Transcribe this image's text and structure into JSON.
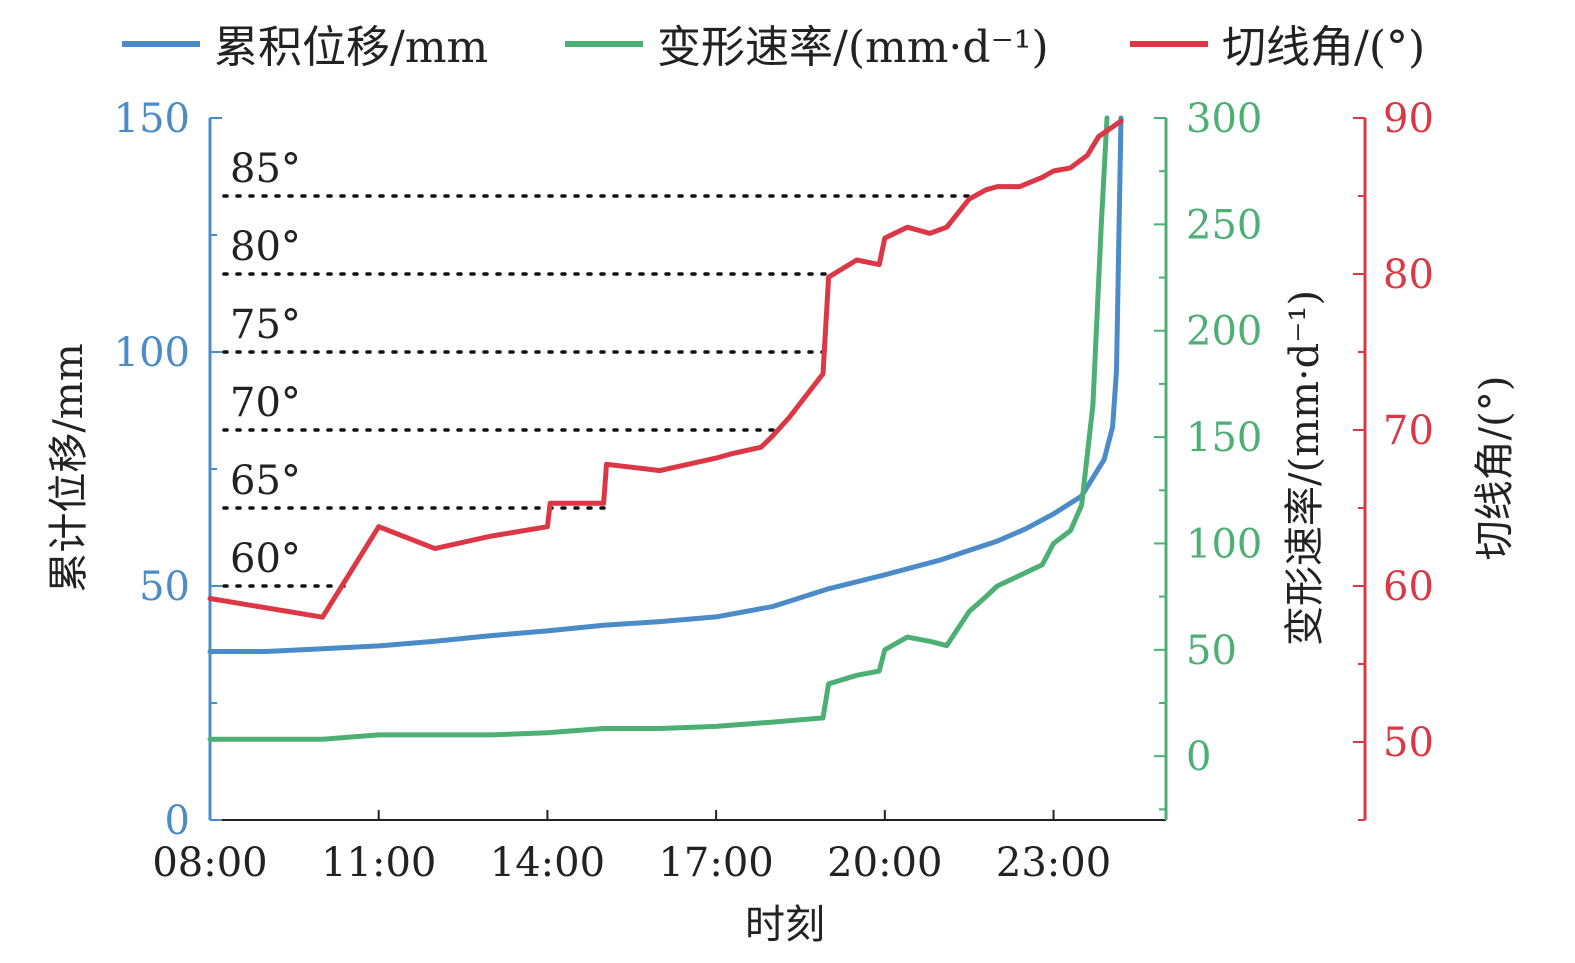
{
  "colors": {
    "displacement": "#4a8bc8",
    "rate": "#4caf74",
    "angle": "#dc3745",
    "text": "#222222",
    "ref_line": "#111111"
  },
  "legend": [
    {
      "label": "累积位移/mm",
      "series": "displacement"
    },
    {
      "label": "变形速率/(mm·d⁻¹)",
      "series": "rate"
    },
    {
      "label": "切线角/(°)",
      "series": "angle"
    }
  ],
  "chart_data": {
    "type": "line",
    "xlabel": "时刻",
    "x_ticks": [
      "08:00",
      "11:00",
      "14:00",
      "17:00",
      "20:00",
      "23:00"
    ],
    "x_range_hours": [
      8,
      25
    ],
    "axes": {
      "left": {
        "label": "累计位移/mm",
        "range": [
          0,
          150
        ],
        "ticks": [
          0,
          50,
          100,
          150
        ],
        "tick_labels": [
          "0",
          "50",
          "100",
          "150"
        ],
        "color": "#4a8bc8"
      },
      "right1": {
        "label": "变形速率/(mm·d⁻¹)",
        "range": [
          -30,
          300
        ],
        "ticks": [
          0,
          50,
          100,
          150,
          200,
          250,
          300
        ],
        "tick_labels": [
          "0",
          "50",
          "100",
          "150",
          "200",
          "250",
          "300"
        ],
        "color": "#4caf74"
      },
      "right2": {
        "label": "切线角/(°)",
        "range": [
          45,
          90
        ],
        "ticks": [
          50,
          60,
          70,
          80,
          90
        ],
        "tick_labels": [
          "50",
          "60",
          "70",
          "80",
          "90"
        ],
        "color": "#dc3745"
      }
    },
    "reference_lines": [
      {
        "angle": 60,
        "label": "60°"
      },
      {
        "angle": 65,
        "label": "65°"
      },
      {
        "angle": 70,
        "label": "70°"
      },
      {
        "angle": 75,
        "label": "75°"
      },
      {
        "angle": 80,
        "label": "80°"
      },
      {
        "angle": 85,
        "label": "85°"
      }
    ],
    "series": [
      {
        "name": "累积位移/mm",
        "axis": "left",
        "color": "#4a8bc8",
        "points": [
          [
            8.0,
            36.0
          ],
          [
            9.0,
            36.0
          ],
          [
            10.0,
            36.6
          ],
          [
            11.0,
            37.2
          ],
          [
            12.0,
            38.2
          ],
          [
            13.0,
            39.4
          ],
          [
            14.0,
            40.4
          ],
          [
            15.0,
            41.6
          ],
          [
            16.0,
            42.4
          ],
          [
            17.0,
            43.4
          ],
          [
            18.0,
            45.6
          ],
          [
            19.0,
            49.4
          ],
          [
            20.0,
            52.4
          ],
          [
            20.5,
            54.0
          ],
          [
            21.0,
            55.6
          ],
          [
            21.5,
            57.6
          ],
          [
            22.0,
            59.6
          ],
          [
            22.5,
            62.2
          ],
          [
            23.0,
            65.4
          ],
          [
            23.5,
            69.2
          ],
          [
            23.9,
            77.0
          ],
          [
            24.05,
            84.0
          ],
          [
            24.12,
            96.0
          ],
          [
            24.2,
            150.0
          ]
        ]
      },
      {
        "name": "变形速率/(mm·d⁻¹)",
        "axis": "right1",
        "color": "#4caf74",
        "points": [
          [
            8.0,
            8.0
          ],
          [
            10.0,
            8.0
          ],
          [
            11.0,
            10.0
          ],
          [
            13.0,
            10.0
          ],
          [
            14.0,
            11.0
          ],
          [
            15.0,
            13.0
          ],
          [
            16.0,
            13.0
          ],
          [
            17.0,
            14.0
          ],
          [
            18.0,
            16.0
          ],
          [
            18.9,
            18.0
          ],
          [
            19.0,
            34.0
          ],
          [
            19.5,
            38.0
          ],
          [
            19.9,
            40.0
          ],
          [
            20.0,
            50.0
          ],
          [
            20.4,
            56.0
          ],
          [
            20.8,
            54.0
          ],
          [
            21.1,
            52.0
          ],
          [
            21.5,
            68.0
          ],
          [
            21.8,
            75.0
          ],
          [
            22.0,
            80.0
          ],
          [
            22.4,
            85.0
          ],
          [
            22.8,
            90.0
          ],
          [
            23.0,
            100.0
          ],
          [
            23.3,
            106.0
          ],
          [
            23.5,
            118.0
          ],
          [
            23.7,
            165.0
          ],
          [
            23.85,
            250.0
          ],
          [
            23.95,
            300.0
          ]
        ]
      },
      {
        "name": "切线角/(°)",
        "axis": "right2",
        "color": "#dc3745",
        "points": [
          [
            8.0,
            59.2
          ],
          [
            10.0,
            58.0
          ],
          [
            11.0,
            63.8
          ],
          [
            12.0,
            62.4
          ],
          [
            13.0,
            63.2
          ],
          [
            14.0,
            63.8
          ],
          [
            14.05,
            65.3
          ],
          [
            15.0,
            65.3
          ],
          [
            15.05,
            67.8
          ],
          [
            16.0,
            67.4
          ],
          [
            17.0,
            68.2
          ],
          [
            17.3,
            68.5
          ],
          [
            17.8,
            68.9
          ],
          [
            18.0,
            69.6
          ],
          [
            18.3,
            70.8
          ],
          [
            18.9,
            73.6
          ],
          [
            19.0,
            79.8
          ],
          [
            19.5,
            80.9
          ],
          [
            19.9,
            80.6
          ],
          [
            20.0,
            82.3
          ],
          [
            20.4,
            83.0
          ],
          [
            20.8,
            82.6
          ],
          [
            21.1,
            83.0
          ],
          [
            21.5,
            84.8
          ],
          [
            21.8,
            85.4
          ],
          [
            22.0,
            85.6
          ],
          [
            22.4,
            85.6
          ],
          [
            22.8,
            86.2
          ],
          [
            23.0,
            86.6
          ],
          [
            23.3,
            86.8
          ],
          [
            23.6,
            87.6
          ],
          [
            23.8,
            88.8
          ],
          [
            24.2,
            89.8
          ]
        ]
      }
    ]
  }
}
